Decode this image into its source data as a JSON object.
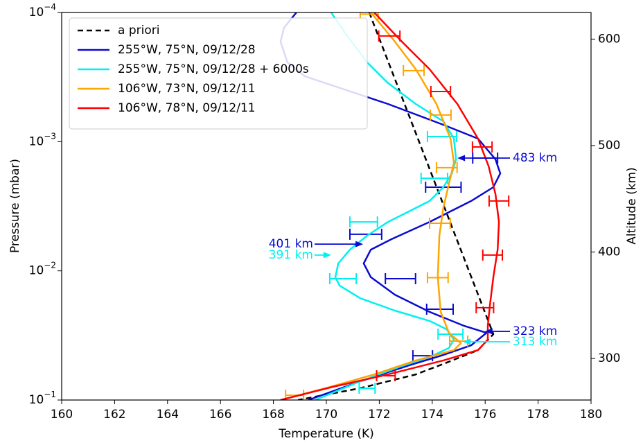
{
  "chart_data": {
    "type": "line",
    "x_label": "Temperature (K)",
    "y_label": "Pressure (mbar)",
    "y2_label": "Altitude (km)",
    "xlim": [
      160,
      180
    ],
    "xticks": [
      160,
      162,
      164,
      166,
      168,
      170,
      172,
      174,
      176,
      178,
      180
    ],
    "ylim": [
      0.1,
      0.0001
    ],
    "yscale": "log",
    "yticks": [
      {
        "value": 0.1,
        "label": "10−1"
      },
      {
        "value": 0.01,
        "label": "10−2"
      },
      {
        "value": 0.001,
        "label": "10−3"
      },
      {
        "value": 0.0001,
        "label": "10−4"
      }
    ],
    "y2lim": [
      261,
      625
    ],
    "y2ticks": [
      300,
      400,
      500,
      600
    ],
    "legend": "upper left",
    "series": [
      {
        "name": "a priori",
        "color": "#000000",
        "style": "dashed",
        "x": [
          171.62,
          176.31,
          175.73,
          174.42,
          173.38,
          171.28,
          168.93
        ],
        "values": [
          0.0001,
          0.0309,
          0.0411,
          0.0526,
          0.0634,
          0.081,
          0.1
        ]
      },
      {
        "name": "255°W, 75°N, 09/12/28",
        "color": "#0a0ad2",
        "style": "solid",
        "x": [
          168.87,
          168.4,
          168.27,
          168.53,
          169.19,
          170.76,
          172.33,
          174.42,
          175.73,
          176.39,
          176.57,
          176.31,
          175.47,
          173.9,
          172.46,
          171.68,
          171.41,
          171.68,
          172.59,
          173.9,
          175.21,
          176.05,
          175.47,
          174.42,
          173.12,
          171.28,
          169.97,
          169.32
        ],
        "values": [
          0.0001,
          0.000131,
          0.000168,
          0.000243,
          0.000312,
          0.000399,
          0.000511,
          0.00074,
          0.000948,
          0.00137,
          0.00176,
          0.00225,
          0.00288,
          0.00418,
          0.00569,
          0.00685,
          0.00877,
          0.0112,
          0.0153,
          0.0208,
          0.0267,
          0.0302,
          0.0377,
          0.0448,
          0.0539,
          0.0716,
          0.0895,
          0.1
        ],
        "errorbars": {
          "x": [
            176.0,
            174.42,
            171.49,
            172.8,
            174.29,
            173.64
          ],
          "values": [
            0.00134,
            0.00225,
            0.00521,
            0.0115,
            0.0198,
            0.0454
          ],
          "xerr": [
            0.47,
            0.67,
            0.6,
            0.57,
            0.5,
            0.37
          ]
        }
      },
      {
        "name": "255°W, 75°N, 09/12/28 + 6000s",
        "color": "#00f0f0",
        "style": "solid",
        "x": [
          170.18,
          170.76,
          171.54,
          172.33,
          173.38,
          174.42,
          174.82,
          174.9,
          174.74,
          174.42,
          173.9,
          173.12,
          172.33,
          171.54,
          170.89,
          170.45,
          170.34,
          170.5,
          171.28,
          172.59,
          173.9,
          174.55,
          174.82,
          174.63,
          173.9,
          172.85,
          171.28,
          169.58
        ],
        "values": [
          0.0001,
          0.000149,
          0.000243,
          0.000352,
          0.000511,
          0.000696,
          0.000948,
          0.00137,
          0.00176,
          0.00225,
          0.00288,
          0.00347,
          0.00418,
          0.00535,
          0.00685,
          0.00877,
          0.0112,
          0.013,
          0.0163,
          0.0203,
          0.0244,
          0.0284,
          0.0341,
          0.0396,
          0.0465,
          0.0546,
          0.0716,
          0.1
        ],
        "errorbars": {
          "x": [
            174.37,
            174.08,
            171.41,
            170.63,
            174.69,
            171.54
          ],
          "values": [
            0.000914,
            0.00192,
            0.00418,
            0.0115,
            0.0309,
            0.0811
          ],
          "xerr": [
            0.55,
            0.5,
            0.52,
            0.5,
            0.47,
            0.3
          ]
        }
      },
      {
        "name": "106°W, 73°N, 09/12/11",
        "color": "#ffa500",
        "style": "solid",
        "x": [
          171.68,
          172.59,
          173.38,
          174.16,
          174.69,
          174.82,
          174.63,
          174.42,
          174.27,
          174.21,
          174.32,
          174.63,
          175.08,
          174.82,
          173.38,
          171.81,
          169.97,
          168.27
        ],
        "values": [
          0.0001,
          0.000168,
          0.000275,
          0.000511,
          0.000948,
          0.00146,
          0.00212,
          0.00326,
          0.00535,
          0.0112,
          0.0208,
          0.0302,
          0.0363,
          0.0411,
          0.0494,
          0.0634,
          0.0811,
          0.1
        ],
        "errorbars": {
          "x": [
            171.62,
            173.3,
            174.32,
            174.55,
            174.29,
            174.21,
            175.0,
            168.8
          ],
          "values": [
            0.000103,
            0.000282,
            0.000622,
            0.00159,
            0.00428,
            0.0113,
            0.035,
            0.0918
          ],
          "xerr": [
            0.34,
            0.39,
            0.39,
            0.39,
            0.39,
            0.39,
            0.34,
            0.34
          ]
        }
      },
      {
        "name": "106°W, 78°N, 09/12/11",
        "color": "#ff0000",
        "style": "solid",
        "x": [
          171.81,
          172.85,
          173.9,
          174.95,
          175.73,
          176.13,
          176.39,
          176.52,
          176.47,
          176.31,
          176.18,
          176.1,
          176.1,
          175.73,
          174.42,
          172.33,
          170.24,
          168.27
        ],
        "values": [
          0.0001,
          0.000168,
          0.000275,
          0.000511,
          0.000948,
          0.00155,
          0.00255,
          0.00418,
          0.00685,
          0.0112,
          0.0184,
          0.0267,
          0.0341,
          0.0411,
          0.0494,
          0.0634,
          0.0791,
          0.1
        ],
        "errorbars": {
          "x": [
            172.38,
            174.32,
            175.89,
            176.52,
            176.28,
            175.99,
            172.25
          ],
          "values": [
            0.000152,
            0.000409,
            0.0011,
            0.00288,
            0.00755,
            0.0193,
            0.0649
          ],
          "xerr": [
            0.4,
            0.37,
            0.37,
            0.37,
            0.37,
            0.33,
            0.35
          ]
        }
      }
    ],
    "annotations": [
      {
        "text": "483 km",
        "color": "#0a0ad2",
        "side": "right",
        "x": 174.95,
        "y": 0.00134
      },
      {
        "text": "401 km",
        "color": "#0a0ad2",
        "side": "left",
        "x": 171.39,
        "y": 0.00621
      },
      {
        "text": "391 km",
        "color": "#00f0f0",
        "side": "left",
        "x": 170.18,
        "y": 0.00755
      },
      {
        "text": "323 km",
        "color": "#0a0ad2",
        "side": "right",
        "x": 175.99,
        "y": 0.0294
      },
      {
        "text": "313 km",
        "color": "#00f0f0",
        "side": "right",
        "x": 175.16,
        "y": 0.0354
      }
    ]
  }
}
